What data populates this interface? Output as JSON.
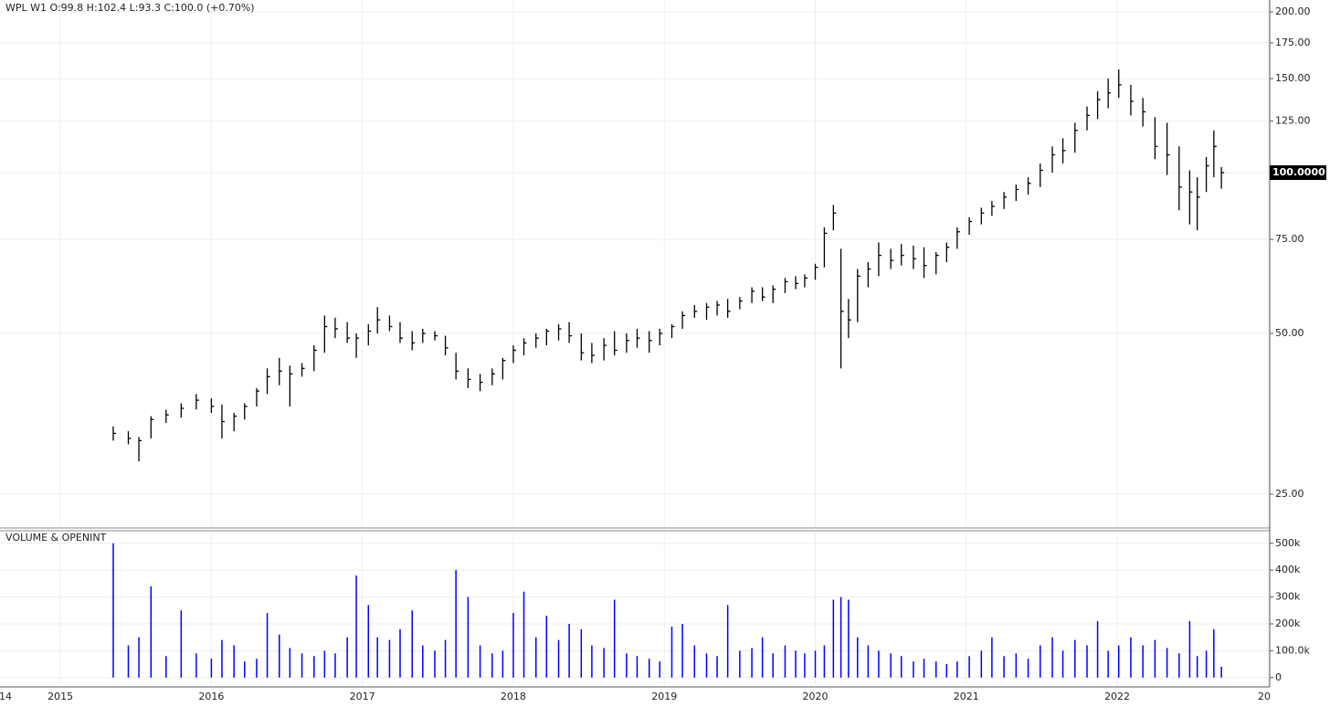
{
  "chart_data": [
    {
      "type": "ohlc",
      "title": "WPL  W1  O:99.8  H:102.4  L:93.3  C:100.0  (+0.70%)",
      "log_scale": true,
      "grid": true,
      "color": "#000000",
      "last_price_label": {
        "value": 100,
        "label": "100.0000"
      },
      "xlim": [
        2014.6,
        2023.01
      ],
      "xticks": [
        {
          "value": 2014,
          "label": "14"
        },
        2015,
        2016,
        2017,
        2018,
        2019,
        2020,
        2021,
        2022,
        {
          "value": 2023,
          "label": "20"
        }
      ],
      "ylim": [
        21.7,
        210.5
      ],
      "yticks": [
        {
          "value": 25,
          "label": "25.00"
        },
        {
          "value": 50,
          "label": "50.00"
        },
        {
          "value": 75,
          "label": "75.00"
        },
        {
          "value": 100,
          "label": "100.00"
        },
        {
          "value": 125,
          "label": "125.00"
        },
        {
          "value": 150,
          "label": "150.00"
        },
        {
          "value": 175,
          "label": "175.00"
        },
        {
          "value": 200,
          "label": "200.00"
        }
      ],
      "x": [
        2015.35,
        2015.45,
        2015.52,
        2015.6,
        2015.7,
        2015.8,
        2015.9,
        2016.0,
        2016.07,
        2016.15,
        2016.22,
        2016.3,
        2016.37,
        2016.45,
        2016.52,
        2016.6,
        2016.68,
        2016.75,
        2016.82,
        2016.9,
        2016.96,
        2017.04,
        2017.1,
        2017.18,
        2017.25,
        2017.33,
        2017.4,
        2017.48,
        2017.55,
        2017.62,
        2017.7,
        2017.78,
        2017.86,
        2017.93,
        2018.0,
        2018.07,
        2018.15,
        2018.22,
        2018.3,
        2018.37,
        2018.45,
        2018.52,
        2018.6,
        2018.67,
        2018.75,
        2018.82,
        2018.9,
        2018.97,
        2019.05,
        2019.12,
        2019.2,
        2019.28,
        2019.35,
        2019.42,
        2019.5,
        2019.58,
        2019.65,
        2019.72,
        2019.8,
        2019.87,
        2019.93,
        2020.0,
        2020.06,
        2020.12,
        2020.17,
        2020.22,
        2020.28,
        2020.35,
        2020.42,
        2020.5,
        2020.57,
        2020.65,
        2020.72,
        2020.8,
        2020.87,
        2020.94,
        2021.02,
        2021.1,
        2021.17,
        2021.25,
        2021.33,
        2021.41,
        2021.49,
        2021.57,
        2021.64,
        2021.72,
        2021.8,
        2021.87,
        2021.94,
        2022.01,
        2022.09,
        2022.17,
        2022.25,
        2022.33,
        2022.41,
        2022.48,
        2022.53,
        2022.59,
        2022.64,
        2022.69
      ],
      "high": [
        33.5,
        32.8,
        32.0,
        35.0,
        36.0,
        37.0,
        38.5,
        37.8,
        36.8,
        35.5,
        37.0,
        39.5,
        43.0,
        45.0,
        43.5,
        44.0,
        47.5,
        54.0,
        53.5,
        52.5,
        50.0,
        52.0,
        56.0,
        54.0,
        52.5,
        50.5,
        51.0,
        50.5,
        49.5,
        46.0,
        43.0,
        42.0,
        43.0,
        45.0,
        47.5,
        49.0,
        50.0,
        51.0,
        52.0,
        52.5,
        50.0,
        48.0,
        49.0,
        50.5,
        50.0,
        51.0,
        50.5,
        51.0,
        52.0,
        55.0,
        56.5,
        57.0,
        57.5,
        58.0,
        58.5,
        61.0,
        61.0,
        61.5,
        63.5,
        64.0,
        64.5,
        67.5,
        79.0,
        87.0,
        72.0,
        58.0,
        66.0,
        68.0,
        74.0,
        72.0,
        73.5,
        73.0,
        72.5,
        71.0,
        74.0,
        79.0,
        82.5,
        86.0,
        88.5,
        92.0,
        95.0,
        98.0,
        104.0,
        112.0,
        116.0,
        124.0,
        133.0,
        142.0,
        150.0,
        156.0,
        146.0,
        138.0,
        127.0,
        124.0,
        112.0,
        101.0,
        98.0,
        107.0,
        120.0,
        102.4
      ],
      "low": [
        31.5,
        31.0,
        28.8,
        31.8,
        34.0,
        34.8,
        36.0,
        35.5,
        31.8,
        32.8,
        34.5,
        36.5,
        38.5,
        40.0,
        36.5,
        41.5,
        42.5,
        46.0,
        49.0,
        48.0,
        45.0,
        47.5,
        50.0,
        50.5,
        48.0,
        46.5,
        48.0,
        48.5,
        45.5,
        41.0,
        39.5,
        39.0,
        40.0,
        41.0,
        44.0,
        45.5,
        47.0,
        47.5,
        48.5,
        48.0,
        44.5,
        44.0,
        44.5,
        45.5,
        46.0,
        47.0,
        46.0,
        47.5,
        49.0,
        51.0,
        53.5,
        53.0,
        54.0,
        53.5,
        55.5,
        57.0,
        57.5,
        57.0,
        59.5,
        60.5,
        61.0,
        63.0,
        66.5,
        78.0,
        43.0,
        49.0,
        52.5,
        61.0,
        64.0,
        66.0,
        67.0,
        66.0,
        63.5,
        64.5,
        68.0,
        72.0,
        76.5,
        80.0,
        83.0,
        85.5,
        88.5,
        91.0,
        94.0,
        100.0,
        104.0,
        109.0,
        120.0,
        126.0,
        132.0,
        138.0,
        128.0,
        122.0,
        106.0,
        99.0,
        85.0,
        80.0,
        78.0,
        92.0,
        98.0,
        93.3
      ],
      "close": [
        32.5,
        31.8,
        31.5,
        34.5,
        35.2,
        36.2,
        37.5,
        36.5,
        34.2,
        35.0,
        36.5,
        39.0,
        41.5,
        42.5,
        42.0,
        43.0,
        46.5,
        51.5,
        51.0,
        49.0,
        49.0,
        50.5,
        53.0,
        51.5,
        49.0,
        48.0,
        50.0,
        49.5,
        47.0,
        42.5,
        41.0,
        40.5,
        42.0,
        44.5,
        46.5,
        48.0,
        49.0,
        50.5,
        51.0,
        49.5,
        46.0,
        45.5,
        47.5,
        46.5,
        48.5,
        49.0,
        48.5,
        50.0,
        51.5,
        54.0,
        55.0,
        56.0,
        56.5,
        55.0,
        57.5,
        60.0,
        58.5,
        60.5,
        62.5,
        62.0,
        63.5,
        66.5,
        77.0,
        84.0,
        55.0,
        53.0,
        64.0,
        66.0,
        70.0,
        68.5,
        70.0,
        69.0,
        67.0,
        70.0,
        72.5,
        77.5,
        81.0,
        84.0,
        86.5,
        90.0,
        93.0,
        95.5,
        101.0,
        108.0,
        110.0,
        120.0,
        128.0,
        137.0,
        141.0,
        146.0,
        136.0,
        130.0,
        112.0,
        108.0,
        94.0,
        92.0,
        90.0,
        103.0,
        112.0,
        100.0
      ]
    },
    {
      "type": "bar",
      "title": "VOLUME & OPENINT",
      "color": "#0000ff",
      "grid": true,
      "ylim": [
        -28000,
        540000
      ],
      "yticks": [
        0,
        {
          "value": 100000,
          "label": "100.0k"
        },
        {
          "value": 200000,
          "label": "200k"
        },
        {
          "value": 300000,
          "label": "300k"
        },
        {
          "value": 400000,
          "label": "400k"
        },
        {
          "value": 500000,
          "label": "500k"
        }
      ],
      "values": [
        500000,
        120000,
        150000,
        340000,
        80000,
        250000,
        90000,
        70000,
        140000,
        120000,
        60000,
        70000,
        240000,
        160000,
        110000,
        90000,
        80000,
        100000,
        90000,
        150000,
        380000,
        270000,
        150000,
        140000,
        180000,
        250000,
        120000,
        100000,
        140000,
        400000,
        300000,
        120000,
        90000,
        100000,
        240000,
        320000,
        150000,
        230000,
        140000,
        200000,
        180000,
        120000,
        110000,
        290000,
        90000,
        80000,
        70000,
        60000,
        190000,
        200000,
        120000,
        90000,
        80000,
        270000,
        100000,
        110000,
        150000,
        90000,
        120000,
        100000,
        90000,
        100000,
        120000,
        290000,
        300000,
        290000,
        150000,
        120000,
        100000,
        90000,
        80000,
        60000,
        70000,
        60000,
        50000,
        60000,
        80000,
        100000,
        150000,
        80000,
        90000,
        70000,
        120000,
        150000,
        100000,
        140000,
        120000,
        210000,
        100000,
        120000,
        150000,
        120000,
        140000,
        110000,
        90000,
        210000,
        80000,
        100000,
        180000,
        40000
      ]
    }
  ]
}
